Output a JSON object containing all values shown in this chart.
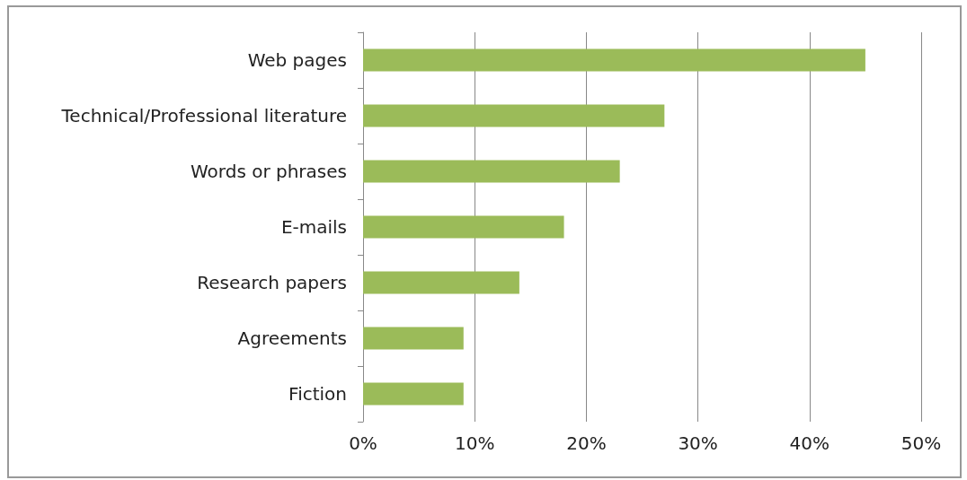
{
  "chart_data": {
    "type": "bar",
    "orientation": "horizontal",
    "categories": [
      "Web pages",
      "Technical/Professional literature",
      "Words or phrases",
      "E-mails",
      "Research papers",
      "Agreements",
      "Fiction"
    ],
    "values": [
      45,
      27,
      23,
      18,
      14,
      9,
      9
    ],
    "color": "#9bbb59",
    "xlim": [
      0,
      50
    ],
    "xticks": [
      {
        "value": 0,
        "label": "0%"
      },
      {
        "value": 10,
        "label": "10%"
      },
      {
        "value": 20,
        "label": "20%"
      },
      {
        "value": 30,
        "label": "30%"
      },
      {
        "value": 40,
        "label": "40%"
      },
      {
        "value": 50,
        "label": "50%"
      }
    ],
    "grid": "x"
  }
}
